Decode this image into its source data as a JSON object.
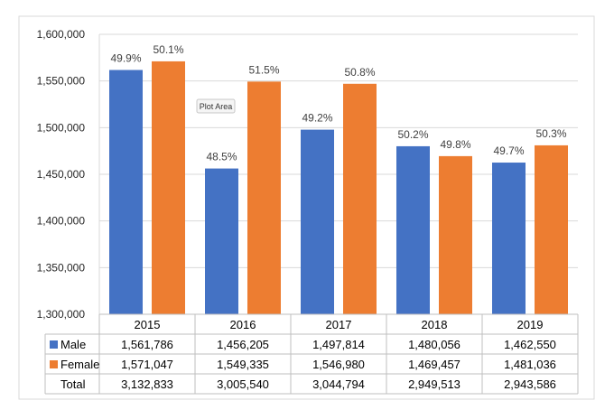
{
  "chart_data": {
    "type": "bar",
    "categories": [
      "2015",
      "2016",
      "2017",
      "2018",
      "2019"
    ],
    "series": [
      {
        "name": "Male",
        "color": "#4472C4",
        "values": [
          1561786,
          1456205,
          1497814,
          1480056,
          1462550
        ],
        "value_labels": [
          "1,561,786",
          "1,456,205",
          "1,497,814",
          "1,480,056",
          "1,462,550"
        ],
        "data_labels": [
          "49.9%",
          "48.5%",
          "49.2%",
          "50.2%",
          "49.7%"
        ]
      },
      {
        "name": "Female",
        "color": "#ED7D31",
        "values": [
          1571047,
          1549335,
          1546980,
          1469457,
          1481036
        ],
        "value_labels": [
          "1,571,047",
          "1,549,335",
          "1,546,980",
          "1,469,457",
          "1,481,036"
        ],
        "data_labels": [
          "50.1%",
          "51.5%",
          "50.8%",
          "49.8%",
          "50.3%"
        ]
      }
    ],
    "total_row": {
      "label": "Total",
      "value_labels": [
        "3,132,833",
        "3,005,540",
        "3,044,794",
        "2,949,513",
        "2,943,586"
      ]
    },
    "y_axis": {
      "ylim": [
        1300000,
        1600000
      ],
      "ticks": [
        1300000,
        1350000,
        1400000,
        1450000,
        1500000,
        1550000,
        1600000
      ],
      "tick_labels": [
        "1,300,000",
        "1,350,000",
        "1,400,000",
        "1,450,000",
        "1,500,000",
        "1,550,000",
        "1,600,000"
      ]
    },
    "grid": true,
    "legend": "data-table",
    "tooltip": "Plot Area"
  }
}
